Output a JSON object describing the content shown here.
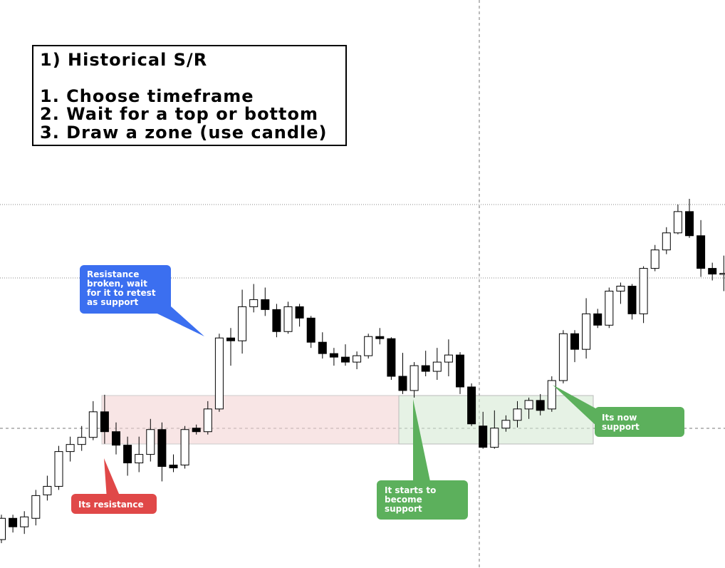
{
  "header": {
    "title": "1) Historical S/R",
    "steps": [
      "1. Choose timeframe",
      "2. Wait for a top or bottom",
      "3. Draw a zone (use candle)"
    ]
  },
  "callouts": {
    "blue": [
      "Resistance",
      "broken, wait",
      "for it to retest",
      "as support"
    ],
    "red": [
      "Its resistance"
    ],
    "green_left": [
      "It starts to",
      "become",
      "support"
    ],
    "green_right": [
      "Its now",
      "support"
    ]
  },
  "chart_data": {
    "type": "candlestick",
    "ylim": [
      0,
      800
    ],
    "up_color": "#ffffff",
    "down_color": "#000000",
    "open": [
      40,
      70,
      58,
      70,
      103,
      115,
      164,
      174,
      184,
      220,
      192,
      173,
      148,
      160,
      195,
      145,
      145,
      197,
      192,
      224,
      324,
      320,
      368,
      378,
      364,
      333,
      368,
      352,
      318,
      302,
      297,
      290,
      299,
      326,
      323,
      270,
      250,
      285,
      277,
      290,
      300,
      255,
      200,
      170,
      197,
      208,
      224,
      236,
      224,
      264,
      330,
      308,
      358,
      342,
      390,
      397,
      358,
      422,
      448,
      472,
      502,
      468,
      422,
      414
    ],
    "high": [
      75,
      75,
      80,
      110,
      130,
      172,
      185,
      200,
      235,
      244,
      205,
      185,
      185,
      210,
      205,
      160,
      200,
      202,
      235,
      330,
      338,
      392,
      400,
      395,
      372,
      375,
      372,
      355,
      332,
      310,
      315,
      305,
      330,
      338,
      325,
      303,
      290,
      306,
      310,
      322,
      304,
      260,
      220,
      222,
      215,
      235,
      240,
      245,
      270,
      335,
      335,
      380,
      365,
      395,
      402,
      400,
      425,
      455,
      480,
      512,
      520,
      490,
      430,
      440
    ],
    "low": [
      35,
      50,
      48,
      60,
      95,
      110,
      150,
      165,
      180,
      175,
      160,
      130,
      135,
      150,
      122,
      135,
      140,
      188,
      188,
      220,
      285,
      302,
      360,
      355,
      325,
      330,
      340,
      310,
      295,
      285,
      285,
      280,
      295,
      315,
      265,
      245,
      240,
      270,
      265,
      270,
      245,
      200,
      168,
      168,
      192,
      198,
      210,
      215,
      220,
      260,
      290,
      295,
      338,
      338,
      372,
      350,
      345,
      418,
      442,
      470,
      465,
      410,
      405,
      390
    ],
    "close": [
      70,
      58,
      72,
      102,
      115,
      164,
      174,
      184,
      220,
      192,
      173,
      148,
      160,
      195,
      143,
      141,
      195,
      192,
      224,
      324,
      320,
      368,
      378,
      364,
      333,
      368,
      352,
      318,
      302,
      297,
      290,
      299,
      326,
      323,
      270,
      250,
      285,
      277,
      290,
      300,
      255,
      203,
      170,
      197,
      208,
      224,
      236,
      222,
      264,
      330,
      308,
      358,
      342,
      390,
      397,
      358,
      422,
      448,
      472,
      502,
      468,
      422,
      414,
      415
    ]
  }
}
